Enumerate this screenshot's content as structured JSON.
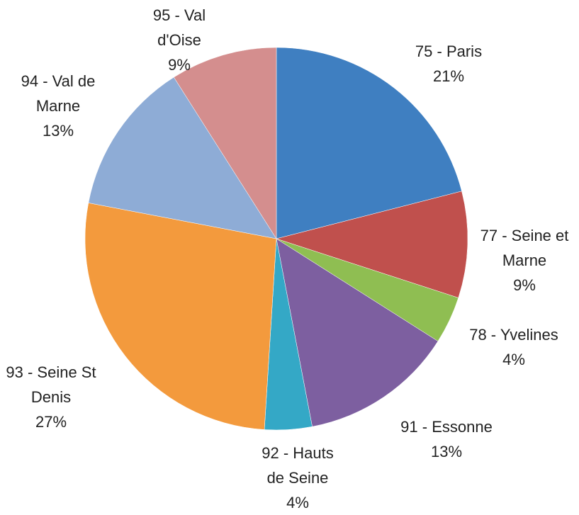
{
  "chart_data": {
    "type": "pie",
    "categories": [
      "75 - Paris",
      "77 - Seine et Marne",
      "78 - Yvelines",
      "91 - Essonne",
      "92 - Hauts de Seine",
      "93 - Seine St Denis",
      "94 - Val de Marne",
      "95 - Val d'Oise"
    ],
    "values": [
      21,
      9,
      4,
      13,
      4,
      27,
      13,
      9
    ],
    "value_labels": [
      "21%",
      "9%",
      "4%",
      "13%",
      "4%",
      "27%",
      "13%",
      "9%"
    ],
    "colors": [
      "#3f7fc1",
      "#c0504d",
      "#8fbe52",
      "#7d5fa0",
      "#34a8c6",
      "#f39a3d",
      "#8eacd6",
      "#d48e8e"
    ]
  }
}
